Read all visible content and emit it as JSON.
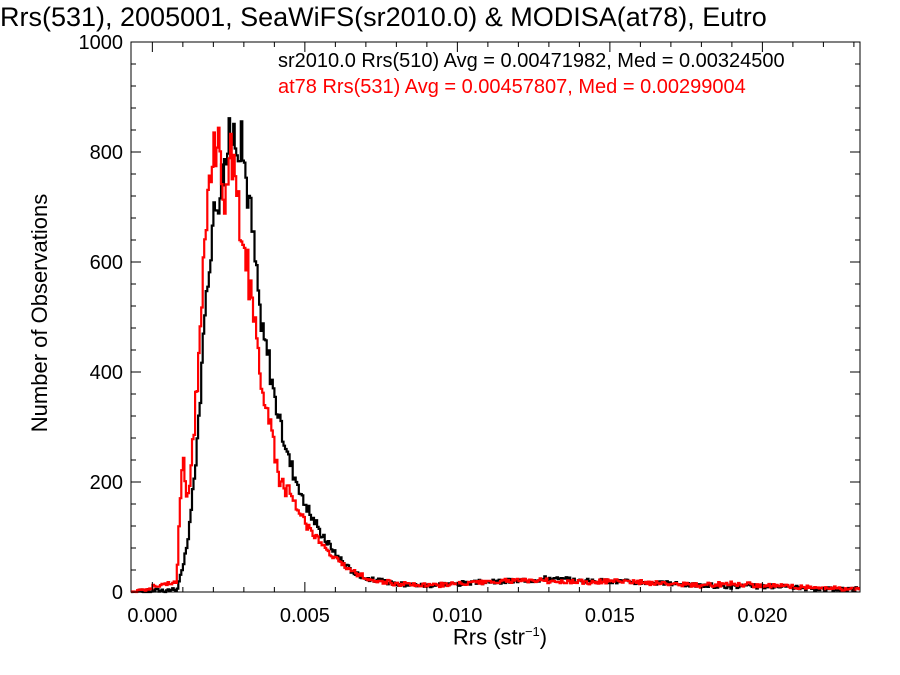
{
  "chart_data": {
    "type": "line",
    "title": "Rrs(531), 2005001, SeaWiFS(sr2010.0) & MODISA(at78), Eutro",
    "xlabel": "Rrs (str",
    "xlabel_sup": "−1",
    "xlabel_close": ")",
    "ylabel": "Number of Observations",
    "xlim": [
      -0.0007,
      0.0232
    ],
    "ylim": [
      0,
      1000
    ],
    "xticks": [
      0.0,
      0.005,
      0.01,
      0.015,
      0.02
    ],
    "xtick_labels": [
      "0.000",
      "0.005",
      "0.010",
      "0.015",
      "0.020"
    ],
    "yticks": [
      0,
      200,
      400,
      600,
      800,
      1000
    ],
    "ytick_labels": [
      "0",
      "200",
      "400",
      "600",
      "800",
      "1000"
    ],
    "grid": false,
    "annotations": [
      {
        "text": "sr2010.0 Rrs(510) Avg = 0.00471982, Med = 0.00324500",
        "color": "#000000"
      },
      {
        "text": "at78 Rrs(531) Avg = 0.00457807, Med = 0.00299004",
        "color": "#ff0000"
      }
    ],
    "series": [
      {
        "color": "#000000",
        "x": [
          -0.0007,
          0.0008,
          0.001,
          0.0012,
          0.0014,
          0.0016,
          0.0018,
          0.002,
          0.0022,
          0.0024,
          0.0026,
          0.0028,
          0.003,
          0.0032,
          0.0034,
          0.0036,
          0.0038,
          0.004,
          0.0042,
          0.0045,
          0.005,
          0.0055,
          0.006,
          0.0065,
          0.007,
          0.008,
          0.009,
          0.01,
          0.011,
          0.012,
          0.013,
          0.014,
          0.015,
          0.016,
          0.017,
          0.018,
          0.019,
          0.02,
          0.021,
          0.022,
          0.0232
        ],
        "y": [
          0,
          5,
          40,
          110,
          220,
          380,
          560,
          680,
          740,
          790,
          830,
          840,
          790,
          700,
          590,
          470,
          430,
          360,
          300,
          240,
          160,
          110,
          70,
          40,
          25,
          15,
          12,
          15,
          18,
          20,
          25,
          20,
          20,
          18,
          15,
          12,
          10,
          10,
          8,
          6,
          5
        ]
      },
      {
        "color": "#ff0000",
        "x": [
          -0.0007,
          0.0008,
          0.0009,
          0.001,
          0.0011,
          0.0012,
          0.0014,
          0.0016,
          0.0018,
          0.002,
          0.0022,
          0.0024,
          0.0026,
          0.0028,
          0.003,
          0.0032,
          0.0034,
          0.0036,
          0.0038,
          0.004,
          0.0042,
          0.0045,
          0.005,
          0.0055,
          0.006,
          0.0065,
          0.007,
          0.008,
          0.009,
          0.01,
          0.011,
          0.012,
          0.013,
          0.014,
          0.015,
          0.016,
          0.017,
          0.018,
          0.019,
          0.02,
          0.021,
          0.022,
          0.0232
        ],
        "y": [
          0,
          20,
          150,
          250,
          170,
          180,
          320,
          500,
          700,
          830,
          800,
          720,
          800,
          700,
          650,
          550,
          470,
          380,
          320,
          260,
          200,
          180,
          130,
          90,
          60,
          40,
          25,
          15,
          12,
          15,
          18,
          20,
          20,
          18,
          20,
          18,
          15,
          12,
          15,
          12,
          10,
          8,
          5
        ]
      }
    ]
  }
}
